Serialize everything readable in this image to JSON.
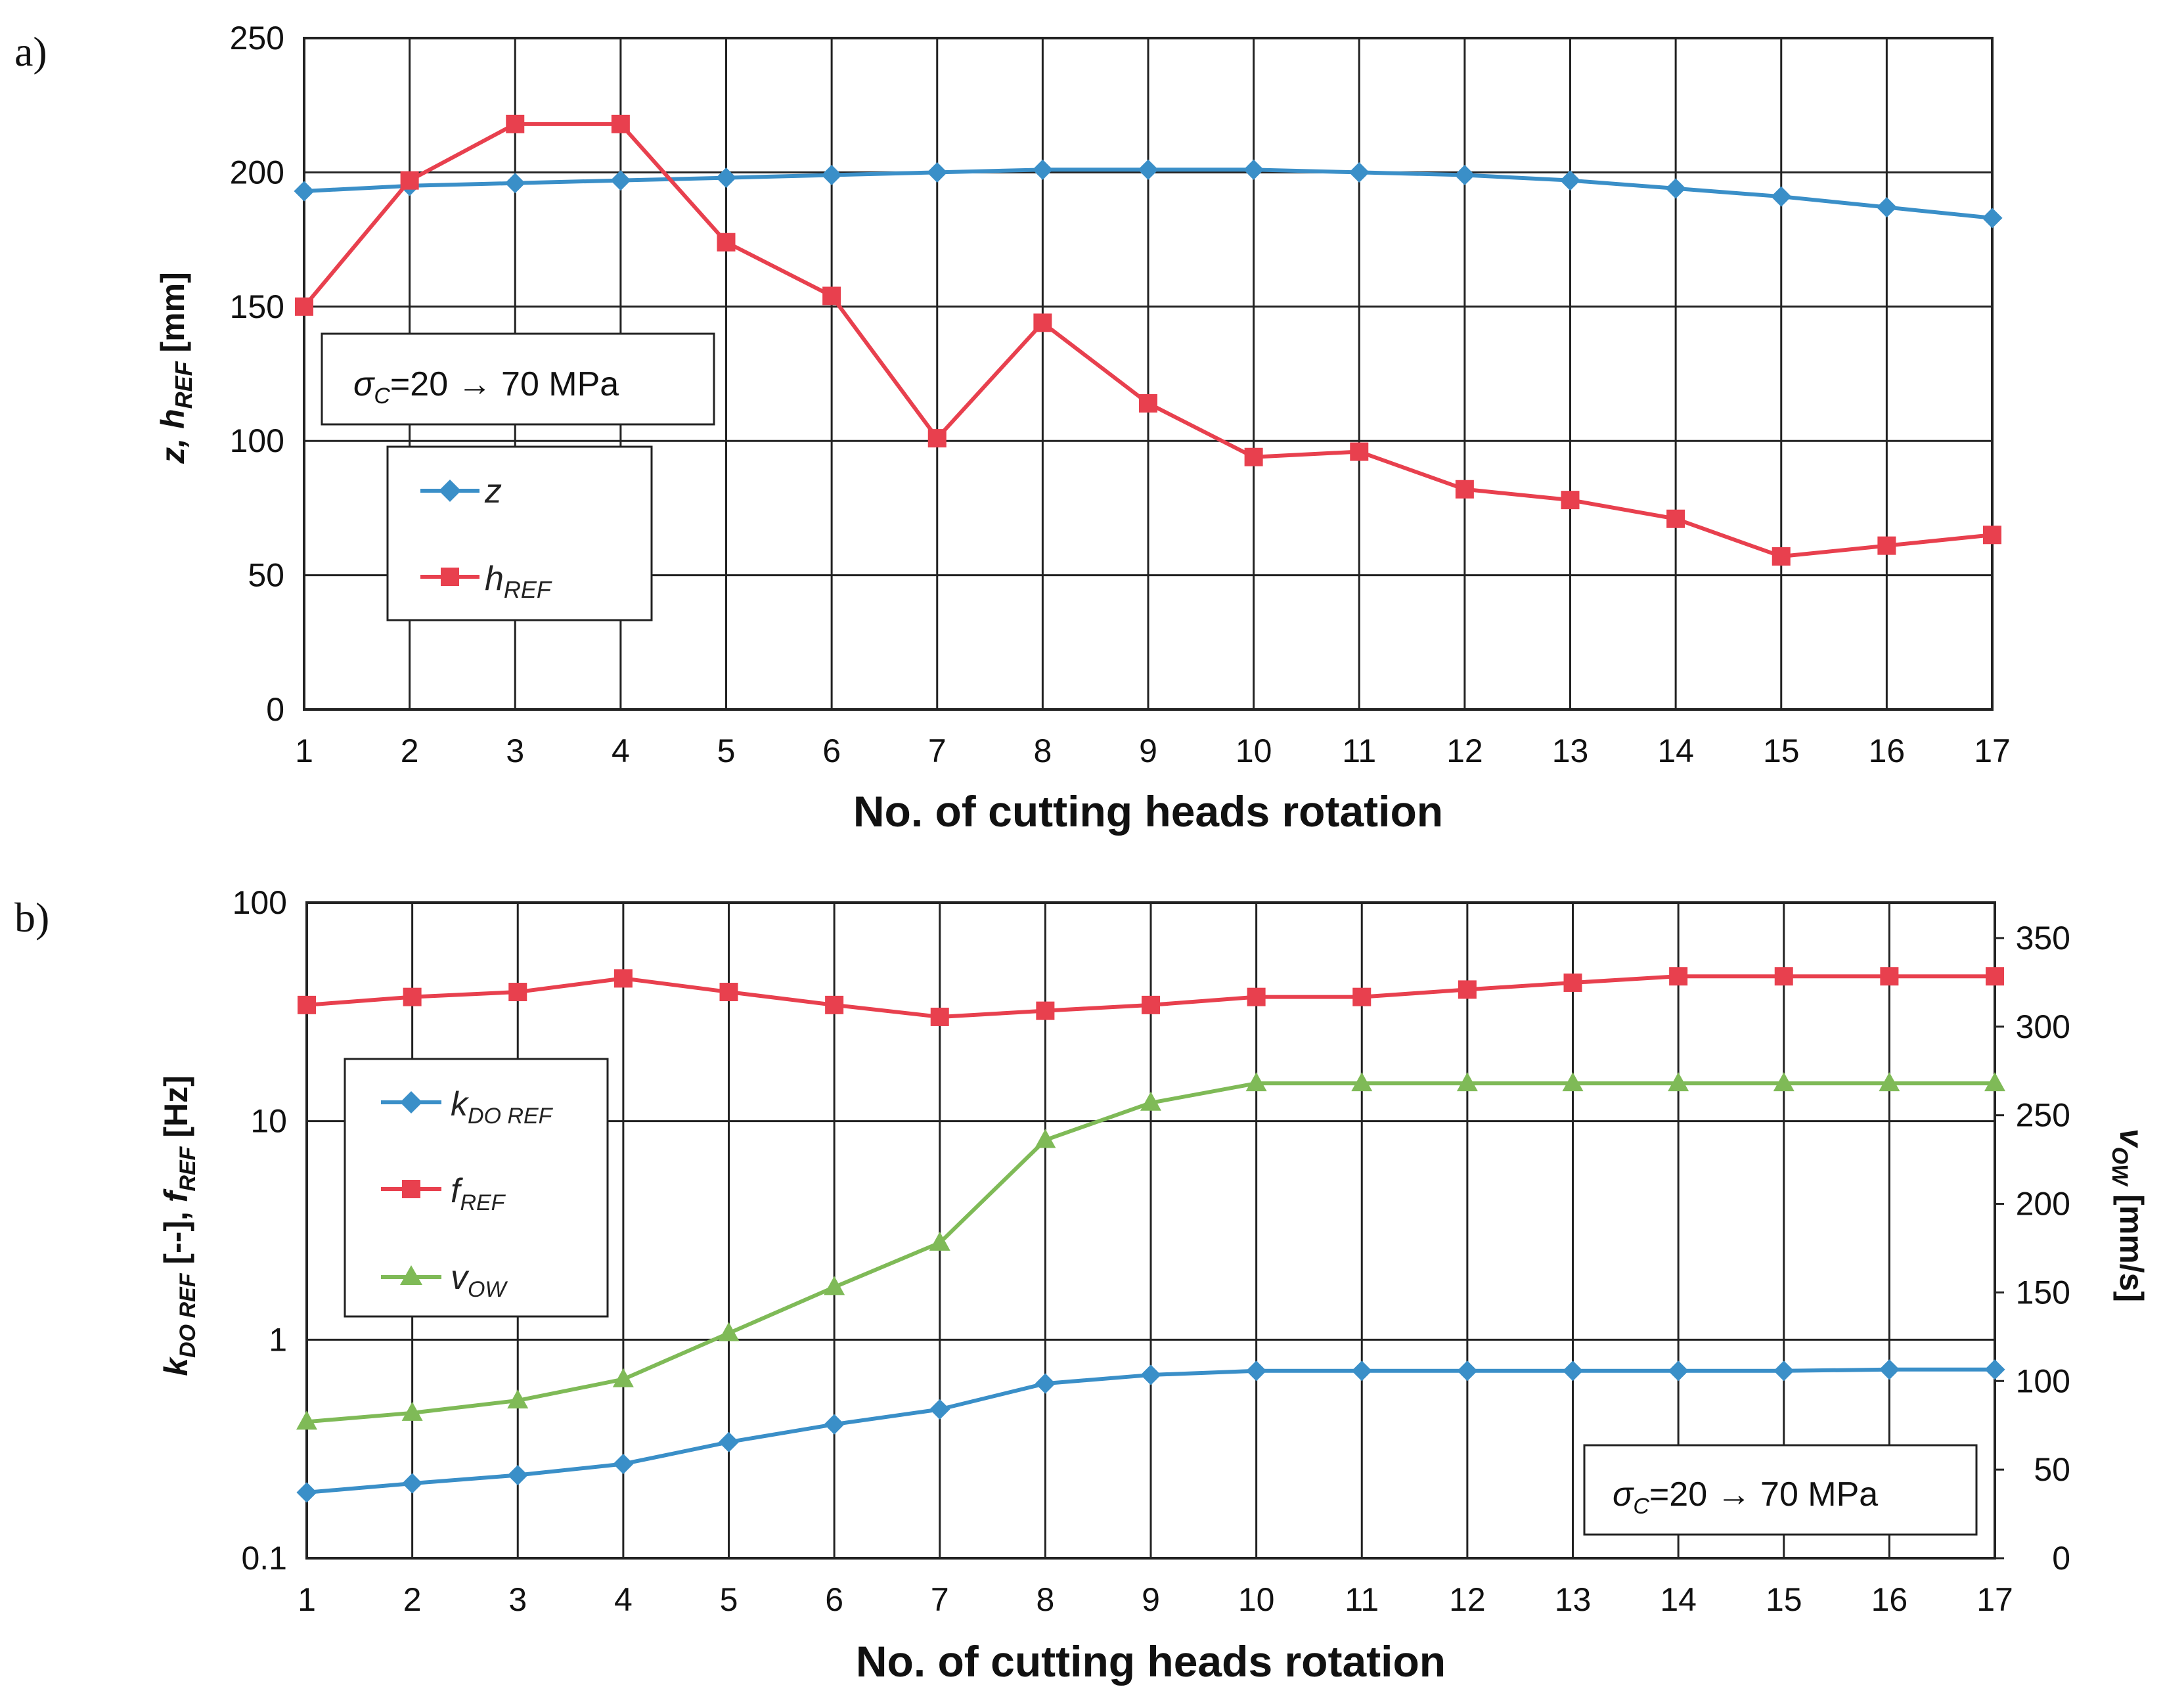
{
  "panel_labels": {
    "a": "a)",
    "b": "b)"
  },
  "colors": {
    "z": "#3a8fc8",
    "hREF": "#e8404e",
    "vOW": "#7fba57",
    "grid": "#222222"
  },
  "chart_data": [
    {
      "type": "line",
      "panel": "a)",
      "x": [
        1,
        2,
        3,
        4,
        5,
        6,
        7,
        8,
        9,
        10,
        11,
        12,
        13,
        14,
        15,
        16,
        17
      ],
      "xlabel": "No. of cutting heads rotation",
      "ylabel": {
        "main": "z,  h",
        "sub": "REF",
        "unit": " [mm]"
      },
      "ylim": [
        0,
        250
      ],
      "yticks": [
        0,
        50,
        100,
        150,
        200,
        250
      ],
      "grid": true,
      "annotation": {
        "sigma": "σ",
        "sub": "C",
        "text": "=20 → 70 MPa"
      },
      "series": [
        {
          "name": "z",
          "marker": "diamond",
          "color": "#3a8fc8",
          "values": [
            193,
            195,
            196,
            197,
            198,
            199,
            200,
            201,
            201,
            201,
            200,
            199,
            197,
            194,
            191,
            187,
            183
          ]
        },
        {
          "name": "h",
          "sub": "REF",
          "marker": "square",
          "color": "#e8404e",
          "values": [
            150,
            197,
            218,
            218,
            174,
            154,
            101,
            144,
            114,
            94,
            96,
            82,
            78,
            71,
            57,
            61,
            65
          ]
        }
      ]
    },
    {
      "type": "line",
      "panel": "b)",
      "x": [
        1,
        2,
        3,
        4,
        5,
        6,
        7,
        8,
        9,
        10,
        11,
        12,
        13,
        14,
        15,
        16,
        17
      ],
      "xlabel": "No. of cutting heads rotation",
      "ylabel_left": {
        "a": "k",
        "a_sub": "DO REF",
        "mid": " [--],  ",
        "b": "f",
        "b_sub": "REF",
        "unit": " [Hz]"
      },
      "ylabel_right": {
        "main": "v",
        "sub": "OW",
        "unit": "  [mm/s]"
      },
      "yscale_left": "log",
      "ylim_left": [
        0.1,
        100
      ],
      "yticks_left": [
        "0.1",
        "1",
        "10",
        "100"
      ],
      "ylim_right": [
        0,
        370
      ],
      "yticks_right": [
        0,
        50,
        100,
        150,
        200,
        250,
        300,
        350
      ],
      "grid": true,
      "annotation": {
        "sigma": "σ",
        "sub": "C",
        "text": "=20 → 70 MPa"
      },
      "series": [
        {
          "name": "k",
          "sub": "DO REF",
          "axis": "left",
          "marker": "diamond",
          "color": "#3a8fc8",
          "values": [
            0.2,
            0.22,
            0.24,
            0.27,
            0.34,
            0.41,
            0.48,
            0.63,
            0.69,
            0.72,
            0.72,
            0.72,
            0.72,
            0.72,
            0.72,
            0.73,
            0.73
          ]
        },
        {
          "name": "f",
          "sub": "REF",
          "axis": "left",
          "marker": "square",
          "color": "#e8404e",
          "values": [
            34,
            37,
            39,
            45,
            39,
            34,
            30,
            32,
            34,
            37,
            37,
            40,
            43,
            46,
            46,
            46,
            46
          ]
        },
        {
          "name": "v",
          "sub": "OW",
          "axis": "right",
          "marker": "triangle",
          "color": "#7fba57",
          "values": [
            77,
            82,
            89,
            101,
            127,
            153,
            178,
            236,
            257,
            268,
            268,
            268,
            268,
            268,
            268,
            268,
            268
          ]
        }
      ]
    }
  ]
}
